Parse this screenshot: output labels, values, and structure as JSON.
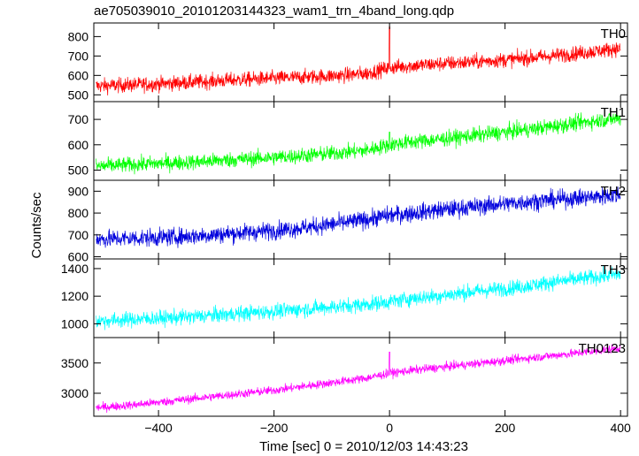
{
  "chart_data": {
    "type": "line",
    "title": "ae705039010_20101203144323_wam1_trn_4band_long.qdp",
    "xlabel": "Time [sec] 0 = 2010/12/03 14:43:23",
    "ylabel": "Counts/sec",
    "x_range": [
      -512,
      412
    ],
    "x_ticks": [
      -400,
      -200,
      0,
      200,
      400
    ],
    "x_tick_labels": [
      "−400",
      "−200",
      "0",
      "200",
      "400"
    ],
    "grid": false,
    "x": [
      -508,
      -480,
      -440,
      -400,
      -360,
      -320,
      -280,
      -240,
      -200,
      -160,
      -120,
      -80,
      -40,
      0,
      40,
      80,
      120,
      160,
      200,
      240,
      280,
      320,
      360,
      400
    ],
    "panels": [
      {
        "name": "TH0",
        "color": "#ff0000",
        "ylim": [
          465,
          870
        ],
        "yticks": [
          500,
          600,
          700,
          800
        ],
        "ytick_labels": [
          "500",
          "600",
          "700",
          "800"
        ],
        "noise": 38,
        "values": [
          545,
          548,
          552,
          556,
          562,
          568,
          575,
          580,
          585,
          590,
          595,
          600,
          610,
          640,
          650,
          658,
          665,
          672,
          680,
          690,
          700,
          712,
          725,
          740
        ],
        "spikes": [
          [
            0,
            850
          ]
        ]
      },
      {
        "name": "TH1",
        "color": "#00ff00",
        "ylim": [
          460,
          770
        ],
        "yticks": [
          500,
          600,
          700
        ],
        "ytick_labels": [
          "500",
          "600",
          "700"
        ],
        "noise": 30,
        "values": [
          515,
          518,
          522,
          526,
          530,
          534,
          540,
          545,
          550,
          556,
          562,
          570,
          578,
          600,
          612,
          620,
          630,
          640,
          650,
          660,
          672,
          684,
          695,
          705
        ],
        "spikes": [
          [
            0,
            650
          ]
        ]
      },
      {
        "name": "TH2",
        "color": "#0000dd",
        "ylim": [
          590,
          950
        ],
        "yticks": [
          600,
          700,
          800,
          900
        ],
        "ytick_labels": [
          "600",
          "700",
          "800",
          "900"
        ],
        "noise": 40,
        "values": [
          680,
          682,
          685,
          688,
          692,
          698,
          705,
          712,
          720,
          730,
          742,
          755,
          770,
          790,
          800,
          812,
          822,
          832,
          842,
          852,
          860,
          868,
          875,
          885
        ],
        "spikes": []
      },
      {
        "name": "TH3",
        "color": "#00ffff",
        "ylim": [
          900,
          1470
        ],
        "yticks": [
          1000,
          1200,
          1400
        ],
        "ytick_labels": [
          "1000",
          "1200",
          "1400"
        ],
        "noise": 55,
        "values": [
          1020,
          1025,
          1032,
          1040,
          1048,
          1058,
          1068,
          1080,
          1090,
          1102,
          1115,
          1128,
          1140,
          1160,
          1185,
          1200,
          1220,
          1240,
          1255,
          1275,
          1300,
          1320,
          1340,
          1360
        ],
        "spikes": []
      },
      {
        "name": "TH0123",
        "color": "#ff00ff",
        "ylim": [
          2620,
          3920
        ],
        "yticks": [
          3000,
          3500
        ],
        "ytick_labels": [
          "3000",
          "3500"
        ],
        "noise": 70,
        "values": [
          2760,
          2780,
          2810,
          2850,
          2890,
          2930,
          2970,
          3010,
          3050,
          3100,
          3150,
          3200,
          3250,
          3330,
          3380,
          3420,
          3460,
          3500,
          3540,
          3580,
          3620,
          3660,
          3700,
          3750
        ],
        "spikes": [
          [
            0,
            3680
          ]
        ]
      }
    ]
  }
}
